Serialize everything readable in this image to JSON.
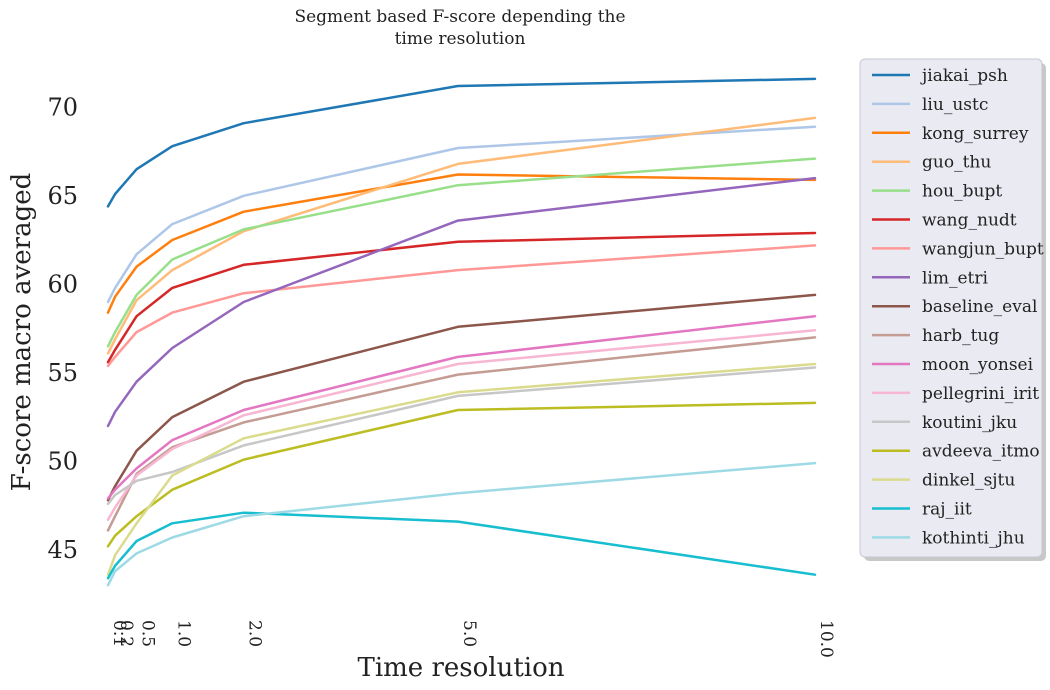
{
  "chart_data": {
    "type": "line",
    "title": "Segment based F-score depending the time resolution",
    "title_lines": [
      "Segment based F-score depending the",
      "time resolution"
    ],
    "xlabel": "Time resolution",
    "ylabel": "F-score macro averaged",
    "x": [
      0.1,
      0.2,
      0.5,
      1.0,
      2.0,
      5.0,
      10.0
    ],
    "x_tick_labels": [
      "0.1",
      "0.2",
      "0.5",
      "1.0",
      "2.0",
      "5.0",
      "10.0"
    ],
    "xlim": [
      0.1,
      10.0
    ],
    "ylim": [
      42,
      72.5
    ],
    "y_ticks": [
      45,
      50,
      55,
      60,
      65,
      70
    ],
    "grid": false,
    "legend_position": "right",
    "series": [
      {
        "name": "jiakai_psh",
        "color": "#1f77b4",
        "values": [
          64.4,
          65.1,
          66.5,
          67.8,
          69.1,
          71.2,
          71.6
        ]
      },
      {
        "name": "liu_ustc",
        "color": "#aec7e8",
        "values": [
          59.0,
          59.8,
          61.7,
          63.4,
          65.0,
          67.7,
          68.9
        ]
      },
      {
        "name": "kong_surrey",
        "color": "#ff7f0e",
        "values": [
          58.4,
          59.3,
          61.0,
          62.5,
          64.1,
          66.2,
          65.9
        ]
      },
      {
        "name": "guo_thu",
        "color": "#ffbb78",
        "values": [
          56.1,
          56.9,
          59.1,
          60.8,
          63.0,
          66.8,
          69.4
        ]
      },
      {
        "name": "hou_bupt",
        "color": "#98df8a",
        "values": [
          56.5,
          57.3,
          59.4,
          61.4,
          63.1,
          65.6,
          67.1
        ]
      },
      {
        "name": "wang_nudt",
        "color": "#d62728",
        "values": [
          55.6,
          56.3,
          58.2,
          59.8,
          61.1,
          62.4,
          62.9
        ]
      },
      {
        "name": "wangjun_bupt",
        "color": "#ff9896",
        "values": [
          55.4,
          55.9,
          57.3,
          58.4,
          59.5,
          60.8,
          62.2
        ]
      },
      {
        "name": "lim_etri",
        "color": "#9467bd",
        "values": [
          52.0,
          52.8,
          54.5,
          56.4,
          59.0,
          63.6,
          66.0
        ]
      },
      {
        "name": "baseline_eval",
        "color": "#8c564b",
        "values": [
          47.8,
          48.6,
          50.6,
          52.5,
          54.5,
          57.6,
          59.4
        ]
      },
      {
        "name": "harb_tug",
        "color": "#c49c94",
        "values": [
          46.1,
          46.9,
          49.3,
          50.8,
          52.2,
          54.9,
          57.0
        ]
      },
      {
        "name": "moon_yonsei",
        "color": "#e377c2",
        "values": [
          47.9,
          48.4,
          49.6,
          51.2,
          52.9,
          55.9,
          58.2
        ]
      },
      {
        "name": "pellegrini_irit",
        "color": "#f7b6d2",
        "values": [
          46.7,
          47.4,
          49.2,
          50.7,
          52.6,
          55.5,
          57.4
        ]
      },
      {
        "name": "koutini_jku",
        "color": "#c7c7c7",
        "values": [
          47.6,
          48.1,
          48.9,
          49.4,
          50.9,
          53.7,
          55.3
        ]
      },
      {
        "name": "avdeeva_itmo",
        "color": "#bcbd22",
        "values": [
          45.2,
          45.8,
          46.9,
          48.4,
          50.1,
          52.9,
          53.3
        ]
      },
      {
        "name": "dinkel_sjtu",
        "color": "#dbdb8d",
        "values": [
          43.6,
          44.7,
          46.5,
          49.2,
          51.3,
          53.9,
          55.5
        ]
      },
      {
        "name": "raj_iit",
        "color": "#17becf",
        "values": [
          43.4,
          44.1,
          45.5,
          46.5,
          47.1,
          46.6,
          43.6
        ]
      },
      {
        "name": "kothinti_jhu",
        "color": "#9edae5",
        "values": [
          43.0,
          43.8,
          44.8,
          45.7,
          46.9,
          48.2,
          49.9
        ]
      }
    ]
  }
}
